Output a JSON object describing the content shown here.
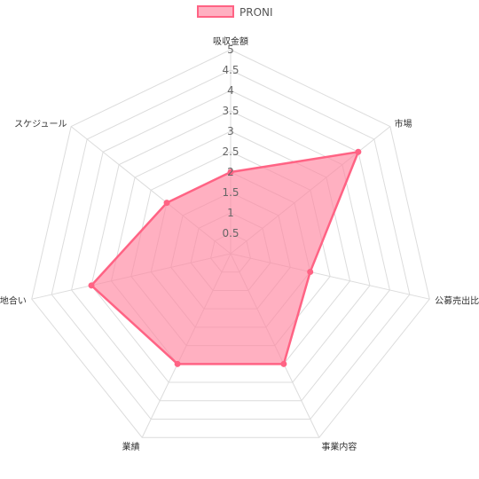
{
  "chart_data": {
    "type": "radar",
    "axes": [
      "吸収金額",
      "市場",
      "公募売出比",
      "事業内容",
      "業績",
      "地合い",
      "スケジュール"
    ],
    "series": [
      {
        "name": "PRONI",
        "values": [
          2,
          4,
          2,
          3,
          3,
          3.5,
          2
        ],
        "fill": "#ff859f",
        "stroke": "#ff6384"
      }
    ],
    "rlim": [
      0,
      5
    ],
    "ticks": [
      "0.5",
      "1",
      "1.5",
      "2",
      "2.5",
      "3",
      "3.5",
      "4",
      "4.5",
      "5"
    ],
    "tick_values": [
      0.5,
      1,
      1.5,
      2,
      2.5,
      3,
      3.5,
      4,
      4.5,
      5
    ],
    "legend": "top",
    "grid": true
  }
}
